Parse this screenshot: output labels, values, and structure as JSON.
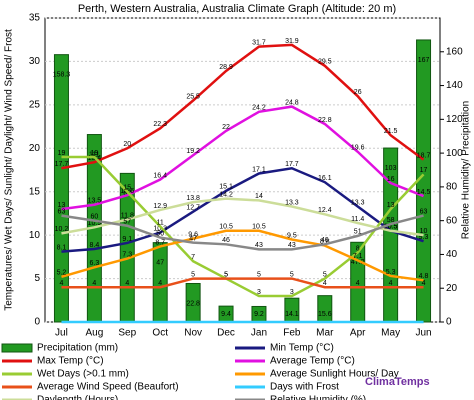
{
  "chart_data": {
    "type": "combo",
    "title": "Perth, Western Australia, Australia Climate Graph (Altitude: 20 m)",
    "y_label": "Temperatures/ Wet Days/ Sunlight/ Daylight/ Wind Speed/ Frost",
    "y2_label": "Relative Humidity/ Precipitation",
    "watermark": "ClimaTemps",
    "categories": [
      "Jul",
      "Aug",
      "Sep",
      "Oct",
      "Nov",
      "Dec",
      "Jan",
      "Feb",
      "Mar",
      "Apr",
      "May",
      "Jun"
    ],
    "ylim": [
      0,
      35
    ],
    "yticks": [
      0,
      5,
      10,
      15,
      20,
      25,
      30,
      35
    ],
    "y2lim": [
      0,
      180
    ],
    "y2ticks": [
      0,
      20,
      40,
      60,
      80,
      100,
      120,
      140,
      160
    ],
    "series": [
      {
        "name": "Precipitation (mm)",
        "kind": "bar",
        "axis": "y2",
        "color": "#229922",
        "values": [
          158.3,
          111,
          88,
          47,
          22.8,
          9.4,
          9.2,
          14.1,
          15.6,
          47.2,
          103,
          167
        ]
      },
      {
        "name": "Min Temp (°C)",
        "kind": "line",
        "color": "#1a1a80",
        "values": [
          8.1,
          8.4,
          9.1,
          10.3,
          12.7,
          15.1,
          17.1,
          17.7,
          16.1,
          13.3,
          10.5,
          9.3
        ]
      },
      {
        "name": "Max Temp (°C)",
        "kind": "line",
        "color": "#e01010",
        "values": [
          17.7,
          18.4,
          20,
          22.3,
          25.5,
          28.9,
          31.7,
          31.9,
          29.5,
          26.0,
          21.5,
          18.7
        ]
      },
      {
        "name": "Average Temp (°C)",
        "kind": "line",
        "color": "#e010e0",
        "values": [
          13.0,
          13.5,
          14.6,
          16.4,
          19.2,
          22.0,
          24.2,
          24.8,
          22.8,
          19.6,
          16.0,
          14.5
        ]
      },
      {
        "name": "Wet Days (>0.1 mm)",
        "kind": "line",
        "color": "#99cc33",
        "values": [
          19,
          19,
          15,
          11,
          7,
          5,
          3,
          3,
          5,
          8,
          13,
          17
        ]
      },
      {
        "name": "Average Sunlight Hours/ Day",
        "kind": "line",
        "color": "#ff9900",
        "values": [
          5.2,
          6.3,
          7.3,
          8.7,
          9.6,
          10.5,
          10.5,
          9.5,
          8.8,
          7.1,
          5.3,
          4.8
        ]
      },
      {
        "name": "Average Wind Speed (Beaufort)",
        "kind": "line",
        "color": "#e8501a",
        "values": [
          4,
          4,
          4,
          4,
          5,
          5,
          5,
          5,
          4,
          4,
          4,
          4
        ]
      },
      {
        "name": "Days with Frost",
        "kind": "line",
        "color": "#33ccff",
        "labels": false,
        "values": [
          0,
          0,
          0,
          0,
          0,
          0,
          0,
          0,
          0,
          0,
          0,
          0
        ]
      },
      {
        "name": "Daylength (Hours)",
        "kind": "line",
        "color": "#ccdd99",
        "values": [
          10.2,
          10.9,
          11.8,
          12.9,
          13.8,
          14.2,
          14.0,
          13.3,
          12.4,
          11.4,
          10.5,
          10.0
        ]
      },
      {
        "name": "Relative Humidity (%)",
        "kind": "line",
        "axis": "y2",
        "color": "#888888",
        "values": [
          63,
          60,
          57,
          50,
          47,
          46,
          43,
          43,
          46,
          51,
          58,
          63
        ]
      }
    ]
  }
}
